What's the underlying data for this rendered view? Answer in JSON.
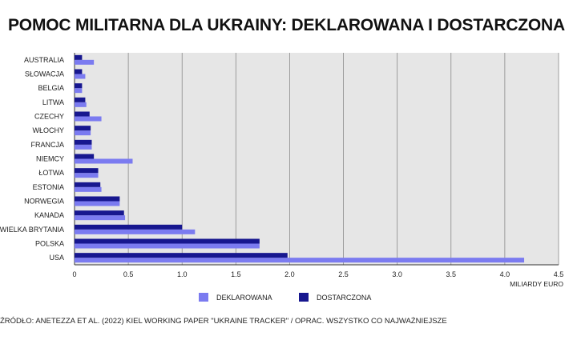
{
  "title": "POMOC MILITARNA DLA UKRAINY: DEKLAROWANA I DOSTARCZONA",
  "source": "ŹRÓDŁO: ANETEZZA ET AL. (2022) KIEL WORKING PAPER \"UKRAINE TRACKER\" / OPRAC. WSZYSTKO CO NAJWAŻNIEJSZE",
  "chart_data": {
    "type": "bar",
    "orientation": "horizontal",
    "xlabel": "MILIARDY EURO",
    "xlim": [
      0,
      4.5
    ],
    "x_ticks": [
      "0",
      "0.5",
      "1.0",
      "1.5",
      "2.0",
      "2.5",
      "3.0",
      "3.5",
      "4.0",
      "4.5"
    ],
    "x_tick_values": [
      0,
      0.5,
      1.0,
      1.5,
      2.0,
      2.5,
      3.0,
      3.5,
      4.0,
      4.5
    ],
    "grid": true,
    "legend_position": "bottom",
    "categories": [
      "AUSTRALIA",
      "SŁOWACJA",
      "BELGIA",
      "LITWA",
      "CZECHY",
      "WŁOCHY",
      "FRANCJA",
      "NIEMCY",
      "ŁOTWA",
      "ESTONIA",
      "NORWEGIA",
      "KANADA",
      "WIELKA BRYTANIA",
      "POLSKA",
      "USA"
    ],
    "series": [
      {
        "name": "DEKLAROWANA",
        "color": "#7b7bf0",
        "values": [
          0.18,
          0.1,
          0.07,
          0.11,
          0.25,
          0.15,
          0.16,
          0.54,
          0.22,
          0.25,
          0.42,
          0.47,
          1.12,
          1.72,
          4.18
        ]
      },
      {
        "name": "DOSTARCZONA",
        "color": "#17178f",
        "values": [
          0.07,
          0.07,
          0.07,
          0.1,
          0.14,
          0.15,
          0.16,
          0.18,
          0.22,
          0.24,
          0.42,
          0.46,
          1.0,
          1.72,
          1.98
        ]
      }
    ]
  }
}
